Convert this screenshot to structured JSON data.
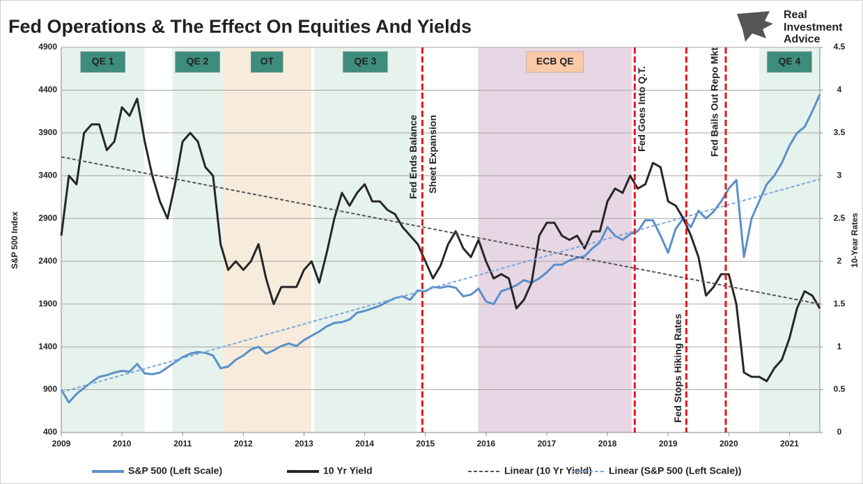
{
  "chart_data": {
    "type": "line",
    "title": "Fed Operations & The Effect On Equities And Yields",
    "logo": [
      "Real",
      "Investment",
      "Advice"
    ],
    "ylabel": "S&P 500 Index",
    "y2label": "10-Year Rates",
    "xlim": [
      2009,
      2021.5
    ],
    "xticks": [
      2009,
      2010,
      2011,
      2012,
      2013,
      2014,
      2015,
      2016,
      2017,
      2018,
      2019,
      2020,
      2021
    ],
    "ylim": [
      400,
      4900
    ],
    "yticks": [
      400,
      900,
      1400,
      1900,
      2400,
      2900,
      3400,
      3900,
      4400,
      4900
    ],
    "y2lim": [
      0,
      4.5
    ],
    "y2ticks": [
      0,
      0.5,
      1,
      1.5,
      2,
      2.5,
      3,
      3.5,
      4,
      4.5
    ],
    "grid": true,
    "legend": "bottom",
    "x": [
      2009,
      2009.125,
      2009.25,
      2009.375,
      2009.5,
      2009.625,
      2009.75,
      2009.875,
      2010,
      2010.125,
      2010.25,
      2010.375,
      2010.5,
      2010.625,
      2010.75,
      2010.875,
      2011,
      2011.125,
      2011.25,
      2011.375,
      2011.5,
      2011.625,
      2011.75,
      2011.875,
      2012,
      2012.125,
      2012.25,
      2012.375,
      2012.5,
      2012.625,
      2012.75,
      2012.875,
      2013,
      2013.125,
      2013.25,
      2013.375,
      2013.5,
      2013.625,
      2013.75,
      2013.875,
      2014,
      2014.125,
      2014.25,
      2014.375,
      2014.5,
      2014.625,
      2014.75,
      2014.875,
      2015,
      2015.125,
      2015.25,
      2015.375,
      2015.5,
      2015.625,
      2015.75,
      2015.875,
      2016,
      2016.125,
      2016.25,
      2016.375,
      2016.5,
      2016.625,
      2016.75,
      2016.875,
      2017,
      2017.125,
      2017.25,
      2017.375,
      2017.5,
      2017.625,
      2017.75,
      2017.875,
      2018,
      2018.125,
      2018.25,
      2018.375,
      2018.5,
      2018.625,
      2018.75,
      2018.875,
      2019,
      2019.125,
      2019.25,
      2019.375,
      2019.5,
      2019.625,
      2019.75,
      2019.875,
      2020,
      2020.125,
      2020.25,
      2020.375,
      2020.5,
      2020.625,
      2020.75,
      2020.875,
      2021,
      2021.125,
      2021.25,
      2021.375,
      2021.5
    ],
    "series": [
      {
        "name": "S&P 500 (Left Scale)",
        "color": "#5b8fc9",
        "width": 3,
        "dash": "solid",
        "values": [
          900,
          750,
          850,
          920,
          990,
          1050,
          1070,
          1100,
          1120,
          1110,
          1200,
          1090,
          1080,
          1100,
          1160,
          1220,
          1280,
          1320,
          1340,
          1330,
          1300,
          1150,
          1170,
          1250,
          1300,
          1370,
          1400,
          1320,
          1360,
          1410,
          1440,
          1410,
          1480,
          1530,
          1580,
          1640,
          1680,
          1690,
          1720,
          1800,
          1820,
          1850,
          1880,
          1930,
          1970,
          1990,
          1950,
          2060,
          2050,
          2100,
          2090,
          2110,
          2090,
          1990,
          2010,
          2080,
          1930,
          1900,
          2050,
          2080,
          2120,
          2180,
          2150,
          2200,
          2270,
          2360,
          2360,
          2410,
          2440,
          2460,
          2550,
          2620,
          2800,
          2700,
          2650,
          2720,
          2750,
          2880,
          2880,
          2700,
          2500,
          2780,
          2900,
          2800,
          2990,
          2900,
          2980,
          3100,
          3250,
          3350,
          2450,
          2900,
          3100,
          3300,
          3400,
          3550,
          3750,
          3900,
          3970,
          4150,
          4350
        ]
      },
      {
        "name": "10 Yr Yield",
        "color": "#262626",
        "width": 3,
        "dash": "solid",
        "axis": "y2",
        "values": [
          2.3,
          3.0,
          2.9,
          3.5,
          3.6,
          3.6,
          3.3,
          3.4,
          3.8,
          3.7,
          3.9,
          3.4,
          3.0,
          2.7,
          2.5,
          2.9,
          3.4,
          3.5,
          3.4,
          3.1,
          3.0,
          2.2,
          1.9,
          2.0,
          1.9,
          2.0,
          2.2,
          1.8,
          1.5,
          1.7,
          1.7,
          1.7,
          1.9,
          2.0,
          1.75,
          2.1,
          2.5,
          2.8,
          2.65,
          2.8,
          2.9,
          2.7,
          2.7,
          2.6,
          2.55,
          2.4,
          2.3,
          2.2,
          2.0,
          1.8,
          1.95,
          2.2,
          2.35,
          2.15,
          2.05,
          2.25,
          2.0,
          1.8,
          1.85,
          1.8,
          1.45,
          1.55,
          1.75,
          2.3,
          2.45,
          2.45,
          2.3,
          2.25,
          2.3,
          2.15,
          2.35,
          2.35,
          2.7,
          2.85,
          2.8,
          3.0,
          2.85,
          2.9,
          3.15,
          3.1,
          2.7,
          2.65,
          2.5,
          2.3,
          2.05,
          1.6,
          1.7,
          1.85,
          1.85,
          1.5,
          0.7,
          0.65,
          0.65,
          0.6,
          0.75,
          0.85,
          1.1,
          1.45,
          1.65,
          1.6,
          1.45
        ]
      }
    ],
    "trends": [
      {
        "name": "Linear (10 Yr Yield)",
        "color": "#555555",
        "axis": "y2",
        "x": [
          2009,
          2021.5
        ],
        "values": [
          3.22,
          1.5
        ]
      },
      {
        "name": "Linear (S&P 500 (Left Scale))",
        "color": "#7aa7d8",
        "x": [
          2009,
          2021.5
        ],
        "values": [
          870,
          3360
        ]
      }
    ],
    "regions": [
      {
        "label": "QE 1",
        "start": 2009,
        "end": 2010.37,
        "color": "#e6f2ec",
        "label_color": "#3e8c7c",
        "text_color": "#ffffff"
      },
      {
        "label": "QE 2",
        "start": 2010.83,
        "end": 2011.66,
        "color": "#e6f2ec",
        "label_color": "#3e8c7c",
        "text_color": "#ffffff"
      },
      {
        "label": "OT",
        "start": 2011.66,
        "end": 2013.12,
        "color": "#f7ebdc",
        "label_color": "#3e8c7c",
        "text_color": "#ffffff"
      },
      {
        "label": "QE 3",
        "start": 2013.17,
        "end": 2014.85,
        "color": "#e6f2ec",
        "label_color": "#3e8c7c",
        "text_color": "#ffffff"
      },
      {
        "label": "ECB QE",
        "start": 2015.87,
        "end": 2018.4,
        "color": "#e7d6e4",
        "label_color": "#f9c9a8",
        "text_color": "#222222"
      },
      {
        "label": "QE 4",
        "start": 2020.5,
        "end": 2021.5,
        "color": "#e6f2ec",
        "label_color": "#3e8c7c",
        "text_color": "#ffffff"
      }
    ],
    "events": [
      {
        "x": 2014.95,
        "lines": [
          "Fed Ends Balance",
          "Sheet Expansion"
        ]
      },
      {
        "x": 2018.45,
        "lines": [
          "Fed Goes Into Q.T."
        ]
      },
      {
        "x": 2019.3,
        "lines": [
          "Fed Stops Hiking Rates"
        ]
      },
      {
        "x": 2019.95,
        "lines": [
          "Fed Bails Out Repo Mkt"
        ]
      }
    ],
    "event_color": "#e8141b"
  }
}
